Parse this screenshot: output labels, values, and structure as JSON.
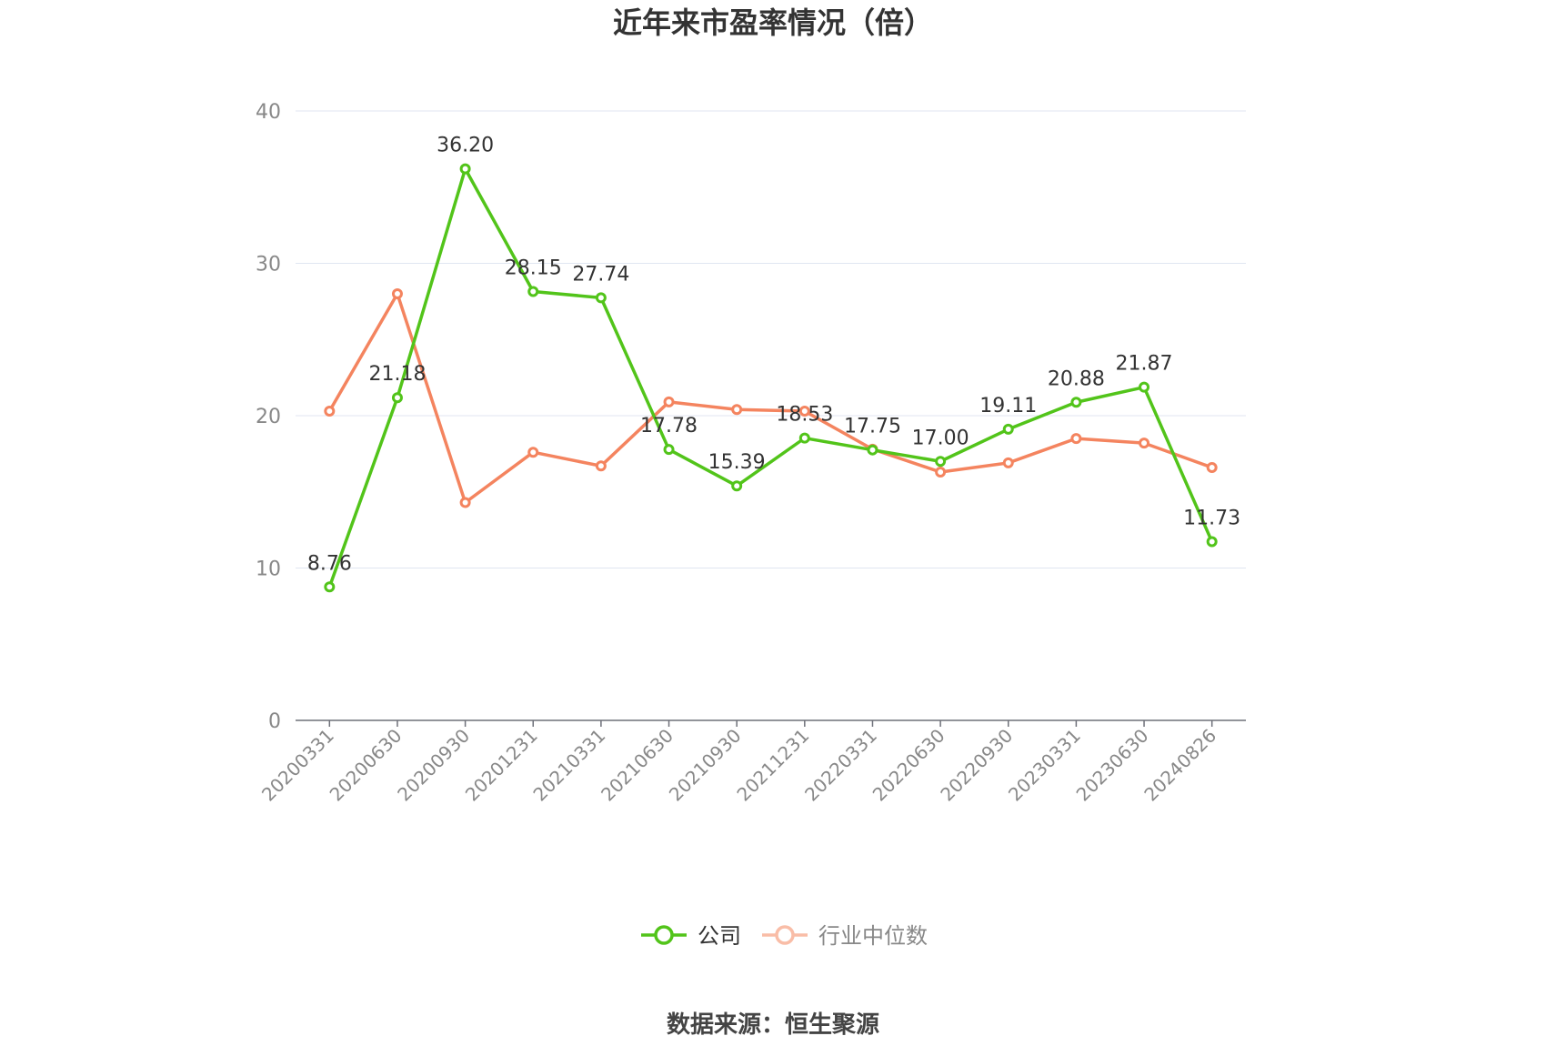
{
  "chart_data": {
    "type": "line",
    "title": "近年来市盈率情况（倍）",
    "categories": [
      "20200331",
      "20200630",
      "20200930",
      "20201231",
      "20210331",
      "20210630",
      "20210930",
      "20211231",
      "20220331",
      "20220630",
      "20220930",
      "20230331",
      "20230630",
      "20240826"
    ],
    "ylim": [
      0,
      40
    ],
    "yticks": [
      0,
      10,
      20,
      30,
      40
    ],
    "grid": true,
    "legend_position": "bottom",
    "series": [
      {
        "name": "公司",
        "color": "#52c41a",
        "show_labels": true,
        "values": [
          8.76,
          21.18,
          36.2,
          28.15,
          27.74,
          17.78,
          15.39,
          18.53,
          17.75,
          17.0,
          19.11,
          20.88,
          21.87,
          11.73
        ],
        "labels": [
          "8.76",
          "21.18",
          "36.20",
          "28.15",
          "27.74",
          "17.78",
          "15.39",
          "18.53",
          "17.75",
          "17.00",
          "19.11",
          "20.88",
          "21.87",
          "11.73"
        ]
      },
      {
        "name": "行业中位数",
        "color": "#f4845f",
        "show_labels": false,
        "values": [
          20.3,
          28.0,
          14.3,
          17.6,
          16.7,
          20.9,
          20.4,
          20.3,
          17.8,
          16.3,
          16.9,
          18.5,
          18.2,
          16.6
        ]
      }
    ]
  },
  "source": "数据来源：恒生聚源"
}
